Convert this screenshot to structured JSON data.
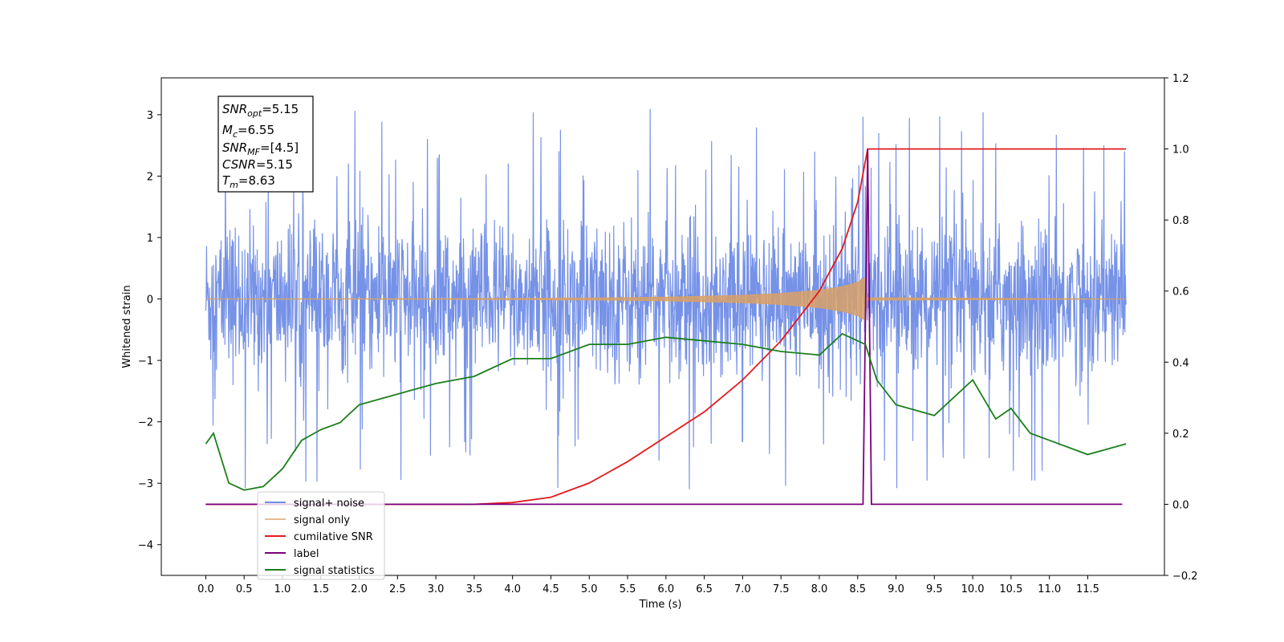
{
  "chart_data": {
    "type": "line",
    "title": "",
    "xlabel": "Time (s)",
    "ylabel_left": "Whitened strain",
    "ylabel_right": "",
    "xlim": [
      -0.58,
      12.5
    ],
    "ylim_left": [
      -4.5,
      3.6
    ],
    "ylim_right": [
      -0.2,
      1.2
    ],
    "x_ticks": [
      "0.0",
      "0.5",
      "1.0",
      "1.5",
      "2.0",
      "2.5",
      "3.0",
      "3.5",
      "4.0",
      "4.5",
      "5.0",
      "5.5",
      "6.0",
      "6.5",
      "7.0",
      "7.5",
      "8.0",
      "8.5",
      "9.0",
      "9.5",
      "10.0",
      "10.5",
      "11.0",
      "11.5"
    ],
    "y_ticks_left": [
      "3",
      "2",
      "1",
      "0",
      "−1",
      "−2",
      "−3",
      "−4"
    ],
    "y_ticks_right": [
      "1.2",
      "1.0",
      "0.8",
      "0.6",
      "0.4",
      "0.2",
      "0.0",
      "−0.2"
    ],
    "grid": false,
    "legend_position": "lower-left",
    "annotation": {
      "snr_opt": "5.15",
      "mc": "6.55",
      "snr_mf": "[4.5]",
      "csnr": "5.15",
      "tm": "8.63"
    },
    "series": [
      {
        "name": "signal+ noise",
        "axis": "left",
        "color": "#6f8ce6",
        "description": "noise band approx. −1.7 to 1.6 with spikes to ±3.1",
        "x": [
          0.0,
          12.0
        ]
      },
      {
        "name": "signal only",
        "axis": "left",
        "color": "#d9a066",
        "description": "chirp envelope, amplitude grows to about ±0.35 at t=8.6 s",
        "x": [
          0.0,
          1.0,
          2.0,
          3.0,
          4.0,
          5.0,
          6.0,
          7.0,
          7.5,
          8.0,
          8.3,
          8.5,
          8.6,
          8.62,
          12.0
        ],
        "y": [
          0.0,
          0.002,
          0.003,
          0.005,
          0.008,
          0.015,
          0.03,
          0.06,
          0.09,
          0.14,
          0.2,
          0.27,
          0.35,
          0.02,
          0.0
        ]
      },
      {
        "name": "cumilative SNR",
        "axis": "right",
        "color": "#e31a1c",
        "x": [
          0.0,
          3.5,
          4.0,
          4.5,
          5.0,
          5.5,
          6.0,
          6.5,
          7.0,
          7.5,
          8.0,
          8.3,
          8.5,
          8.63,
          12.0
        ],
        "y": [
          0.0,
          0.0,
          0.005,
          0.02,
          0.06,
          0.12,
          0.19,
          0.26,
          0.35,
          0.46,
          0.6,
          0.72,
          0.85,
          1.0,
          1.0
        ]
      },
      {
        "name": "label",
        "axis": "right",
        "color": "#7b007b",
        "x": [
          0.0,
          8.57,
          8.63,
          8.68,
          11.95
        ],
        "y": [
          0.0,
          0.0,
          1.0,
          0.0,
          0.0
        ]
      },
      {
        "name": "signal statistics",
        "axis": "right",
        "color": "#1a7f1a",
        "x": [
          0.0,
          0.1,
          0.3,
          0.5,
          0.75,
          1.0,
          1.25,
          1.5,
          1.75,
          2.0,
          2.5,
          3.0,
          3.5,
          4.0,
          4.5,
          5.0,
          5.5,
          6.0,
          6.5,
          7.0,
          7.5,
          8.0,
          8.3,
          8.6,
          8.75,
          9.0,
          9.5,
          10.0,
          10.3,
          10.5,
          10.75,
          11.0,
          11.5,
          12.0
        ],
        "y": [
          0.17,
          0.2,
          0.06,
          0.04,
          0.05,
          0.1,
          0.18,
          0.21,
          0.23,
          0.28,
          0.31,
          0.34,
          0.36,
          0.41,
          0.41,
          0.45,
          0.45,
          0.47,
          0.46,
          0.45,
          0.43,
          0.42,
          0.48,
          0.45,
          0.35,
          0.28,
          0.25,
          0.35,
          0.24,
          0.27,
          0.2,
          0.18,
          0.14,
          0.17
        ]
      }
    ]
  }
}
